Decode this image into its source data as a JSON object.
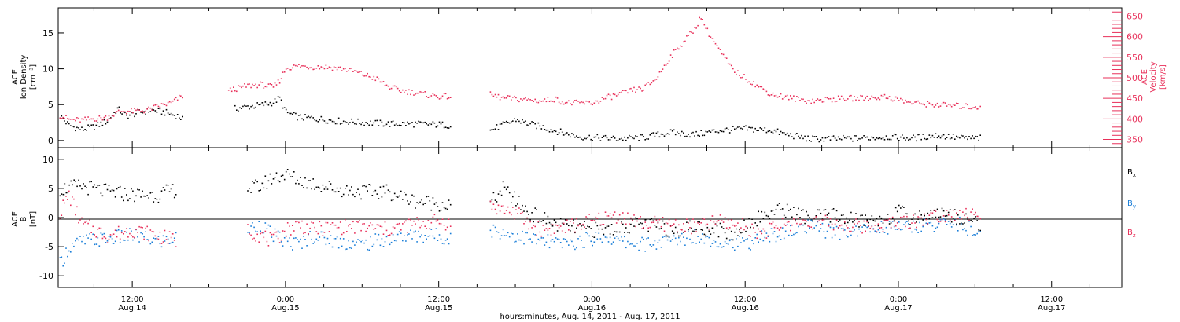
{
  "colors": {
    "black": "#000000",
    "pink": "#e8305a",
    "blue": "#1a7ed8"
  },
  "x_axis": {
    "label": "hours:minutes, Aug. 14, 2011 - Aug. 17, 2011",
    "range_hours": [
      6.2,
      89.5
    ],
    "ticks": [
      {
        "hours": 12,
        "time": "12:00",
        "date": "Aug.14"
      },
      {
        "hours": 24,
        "time": "0:00",
        "date": "Aug.15"
      },
      {
        "hours": 36,
        "time": "12:00",
        "date": "Aug.15"
      },
      {
        "hours": 48,
        "time": "0:00",
        "date": "Aug.16"
      },
      {
        "hours": 60,
        "time": "12:00",
        "date": "Aug.16"
      },
      {
        "hours": 72,
        "time": "0:00",
        "date": "Aug.17"
      },
      {
        "hours": 84,
        "time": "12:00",
        "date": "Aug.17"
      }
    ]
  },
  "chart_data": [
    {
      "type": "scatter",
      "panel": "top",
      "ylabel_left": [
        "ACE",
        "Ion Density",
        "[cm⁻³]"
      ],
      "ylabel_right": [
        "ACE",
        "Velocity",
        "[km/s]"
      ],
      "ylim_left": [
        -1,
        18.5
      ],
      "ylim_right": [
        330,
        670
      ],
      "yticks_left": [
        0,
        5,
        10,
        15
      ],
      "yticks_right": [
        350,
        400,
        450,
        500,
        550,
        600,
        650
      ],
      "series": [
        {
          "color_key": "black",
          "axis": "left",
          "points": [
            [
              6.3,
              3.5
            ],
            [
              7,
              2.2
            ],
            [
              8,
              1.6
            ],
            [
              9,
              2
            ],
            [
              10,
              2.8
            ],
            [
              10.8,
              4.5
            ],
            [
              11.5,
              3.5
            ],
            [
              12.5,
              4
            ],
            [
              13.5,
              4.3
            ],
            [
              14.5,
              4
            ],
            [
              15.5,
              3.5
            ],
            [
              16,
              3
            ],
            [
              20,
              4.5
            ],
            [
              21,
              4.8
            ],
            [
              22,
              5
            ],
            [
              23,
              5.4
            ],
            [
              23.5,
              6
            ],
            [
              24,
              4
            ],
            [
              25,
              3.3
            ],
            [
              26,
              3.2
            ],
            [
              28,
              2.8
            ],
            [
              30,
              2.6
            ],
            [
              32,
              2.4
            ],
            [
              34,
              2.4
            ],
            [
              36,
              2.3
            ],
            [
              37,
              2.2
            ],
            [
              40,
              1.5
            ],
            [
              42,
              3
            ],
            [
              43,
              2.4
            ],
            [
              44,
              2
            ],
            [
              45,
              1.5
            ],
            [
              46,
              1
            ],
            [
              47,
              0.6
            ],
            [
              48,
              0.5
            ],
            [
              50,
              0.3
            ],
            [
              52,
              0.5
            ],
            [
              54,
              1.2
            ],
            [
              56,
              0.9
            ],
            [
              58,
              1.5
            ],
            [
              60,
              1.7
            ],
            [
              62,
              1.5
            ],
            [
              63,
              1
            ],
            [
              65,
              0.3
            ],
            [
              67,
              0.3
            ],
            [
              69,
              0.4
            ],
            [
              71,
              0.6
            ],
            [
              73,
              0.4
            ],
            [
              75,
              0.8
            ],
            [
              77,
              0.4
            ],
            [
              78.5,
              0.4
            ]
          ]
        },
        {
          "color_key": "pink",
          "axis": "right",
          "points": [
            [
              6.3,
              410
            ],
            [
              7,
              400
            ],
            [
              8,
              398
            ],
            [
              9,
              402
            ],
            [
              10,
              405
            ],
            [
              11,
              420
            ],
            [
              12,
              420
            ],
            [
              13,
              422
            ],
            [
              14,
              432
            ],
            [
              15,
              440
            ],
            [
              16,
              460
            ],
            [
              19.5,
              470
            ],
            [
              21,
              482
            ],
            [
              22,
              485
            ],
            [
              23,
              478
            ],
            [
              23.5,
              495
            ],
            [
              24,
              525
            ],
            [
              25,
              530
            ],
            [
              26,
              528
            ],
            [
              27,
              528
            ],
            [
              28,
              525
            ],
            [
              29,
              520
            ],
            [
              30,
              510
            ],
            [
              31,
              500
            ],
            [
              32,
              480
            ],
            [
              33,
              470
            ],
            [
              34,
              466
            ],
            [
              35,
              460
            ],
            [
              36,
              456
            ],
            [
              37,
              456
            ],
            [
              40,
              460
            ],
            [
              41,
              452
            ],
            [
              42,
              450
            ],
            [
              43,
              448
            ],
            [
              44,
              445
            ],
            [
              45,
              450
            ],
            [
              46,
              440
            ],
            [
              47,
              440
            ],
            [
              48,
              440
            ],
            [
              49,
              452
            ],
            [
              50,
              460
            ],
            [
              51,
              470
            ],
            [
              52,
              475
            ],
            [
              53,
              500
            ],
            [
              54,
              548
            ],
            [
              55,
              585
            ],
            [
              56,
              620
            ],
            [
              56.5,
              650
            ],
            [
              57,
              615
            ],
            [
              58,
              565
            ],
            [
              59,
              520
            ],
            [
              60,
              500
            ],
            [
              61,
              480
            ],
            [
              62,
              462
            ],
            [
              63,
              455
            ],
            [
              65,
              445
            ],
            [
              67,
              450
            ],
            [
              69,
              452
            ],
            [
              71,
              455
            ],
            [
              72,
              448
            ],
            [
              73,
              440
            ],
            [
              75,
              436
            ],
            [
              77,
              432
            ],
            [
              78.5,
              430
            ]
          ]
        }
      ]
    },
    {
      "type": "scatter",
      "panel": "bottom",
      "ylabel_left": [
        "ACE",
        "B",
        "[nT]"
      ],
      "ylim_left": [
        -12,
        12
      ],
      "yticks_left": [
        -10,
        -5,
        0,
        5,
        10
      ],
      "zero_line": true,
      "legend": [
        {
          "label": "B",
          "sub": "x",
          "color_key": "black"
        },
        {
          "label": "B",
          "sub": "y",
          "color_key": "blue"
        },
        {
          "label": "B",
          "sub": "z",
          "color_key": "pink"
        }
      ],
      "series": [
        {
          "name": "Bx",
          "color_key": "black",
          "points": [
            [
              6.3,
              5
            ],
            [
              8,
              5.5
            ],
            [
              10,
              4.5
            ],
            [
              12,
              4
            ],
            [
              14,
              4
            ],
            [
              15.5,
              5
            ],
            [
              21,
              5
            ],
            [
              22,
              5.5
            ],
            [
              23,
              7
            ],
            [
              24,
              7.5
            ],
            [
              25,
              6.5
            ],
            [
              26,
              6
            ],
            [
              28,
              5
            ],
            [
              30,
              4.5
            ],
            [
              32,
              4.5
            ],
            [
              34,
              3
            ],
            [
              36,
              2.5
            ],
            [
              37,
              2
            ],
            [
              40,
              2.5
            ],
            [
              41,
              5
            ],
            [
              42,
              3
            ],
            [
              43,
              1
            ],
            [
              44,
              0
            ],
            [
              45,
              -1
            ],
            [
              46,
              -1.5
            ],
            [
              48,
              -2
            ],
            [
              49,
              -2
            ],
            [
              50,
              -1.5
            ],
            [
              52,
              -1
            ],
            [
              54,
              -2
            ],
            [
              56,
              -1.5
            ],
            [
              58,
              -2
            ],
            [
              59,
              -3
            ],
            [
              60,
              -1
            ],
            [
              61,
              0
            ],
            [
              62,
              1
            ],
            [
              63,
              1.5
            ],
            [
              65,
              0
            ],
            [
              67,
              0.5
            ],
            [
              69,
              -0.5
            ],
            [
              71,
              0
            ],
            [
              72,
              1
            ],
            [
              73,
              0
            ],
            [
              75,
              1
            ],
            [
              77,
              0
            ],
            [
              78.5,
              -1
            ]
          ]
        },
        {
          "name": "By",
          "color_key": "blue",
          "points": [
            [
              6.3,
              -8
            ],
            [
              7,
              -5
            ],
            [
              8,
              -4
            ],
            [
              10,
              -3.5
            ],
            [
              12,
              -3
            ],
            [
              14,
              -4
            ],
            [
              15.5,
              -3.5
            ],
            [
              21,
              -2
            ],
            [
              22,
              -1
            ],
            [
              23,
              -3
            ],
            [
              24,
              -4
            ],
            [
              25,
              -4.5
            ],
            [
              26,
              -3
            ],
            [
              28,
              -4
            ],
            [
              30,
              -4.5
            ],
            [
              32,
              -3.5
            ],
            [
              34,
              -3
            ],
            [
              36,
              -3
            ],
            [
              37,
              -3.5
            ],
            [
              40,
              -2
            ],
            [
              42,
              -3
            ],
            [
              44,
              -4
            ],
            [
              46,
              -4.5
            ],
            [
              48,
              -3.5
            ],
            [
              49,
              -3
            ],
            [
              50,
              -4
            ],
            [
              52,
              -4.5
            ],
            [
              54,
              -4
            ],
            [
              56,
              -3
            ],
            [
              58,
              -4
            ],
            [
              60,
              -4.5
            ],
            [
              61,
              -3.5
            ],
            [
              62,
              -3
            ],
            [
              63,
              -2.5
            ],
            [
              65,
              -1.5
            ],
            [
              67,
              -2.5
            ],
            [
              69,
              -2
            ],
            [
              71,
              -1.5
            ],
            [
              73,
              -1.5
            ],
            [
              75,
              -1
            ],
            [
              77,
              -1
            ],
            [
              78.5,
              -3.5
            ]
          ]
        },
        {
          "name": "Bz",
          "color_key": "pink",
          "points": [
            [
              6.3,
              1
            ],
            [
              7,
              4
            ],
            [
              8,
              -1
            ],
            [
              9,
              -2
            ],
            [
              10,
              -3
            ],
            [
              12,
              -2
            ],
            [
              14,
              -3
            ],
            [
              15.5,
              -4
            ],
            [
              21,
              -2
            ],
            [
              22,
              -3
            ],
            [
              23,
              -4
            ],
            [
              24,
              -2
            ],
            [
              25,
              -1
            ],
            [
              26,
              -2
            ],
            [
              28,
              -1.5
            ],
            [
              30,
              -1.5
            ],
            [
              32,
              -2
            ],
            [
              34,
              -1
            ],
            [
              36,
              -0.5
            ],
            [
              37,
              -1
            ],
            [
              40,
              2
            ],
            [
              42,
              1
            ],
            [
              43,
              -1
            ],
            [
              44,
              -2
            ],
            [
              46,
              -1.5
            ],
            [
              48,
              -0.5
            ],
            [
              50,
              0.5
            ],
            [
              52,
              -1
            ],
            [
              54,
              -1
            ],
            [
              56,
              -1.5
            ],
            [
              58,
              -0.5
            ],
            [
              60,
              -1.5
            ],
            [
              61,
              -2.5
            ],
            [
              62,
              -2
            ],
            [
              63,
              -1
            ],
            [
              65,
              -0.5
            ],
            [
              67,
              -1
            ],
            [
              69,
              -1.5
            ],
            [
              71,
              -1
            ],
            [
              73,
              -0.5
            ],
            [
              75,
              0.5
            ],
            [
              77,
              1
            ],
            [
              78.5,
              0
            ]
          ]
        }
      ]
    }
  ]
}
